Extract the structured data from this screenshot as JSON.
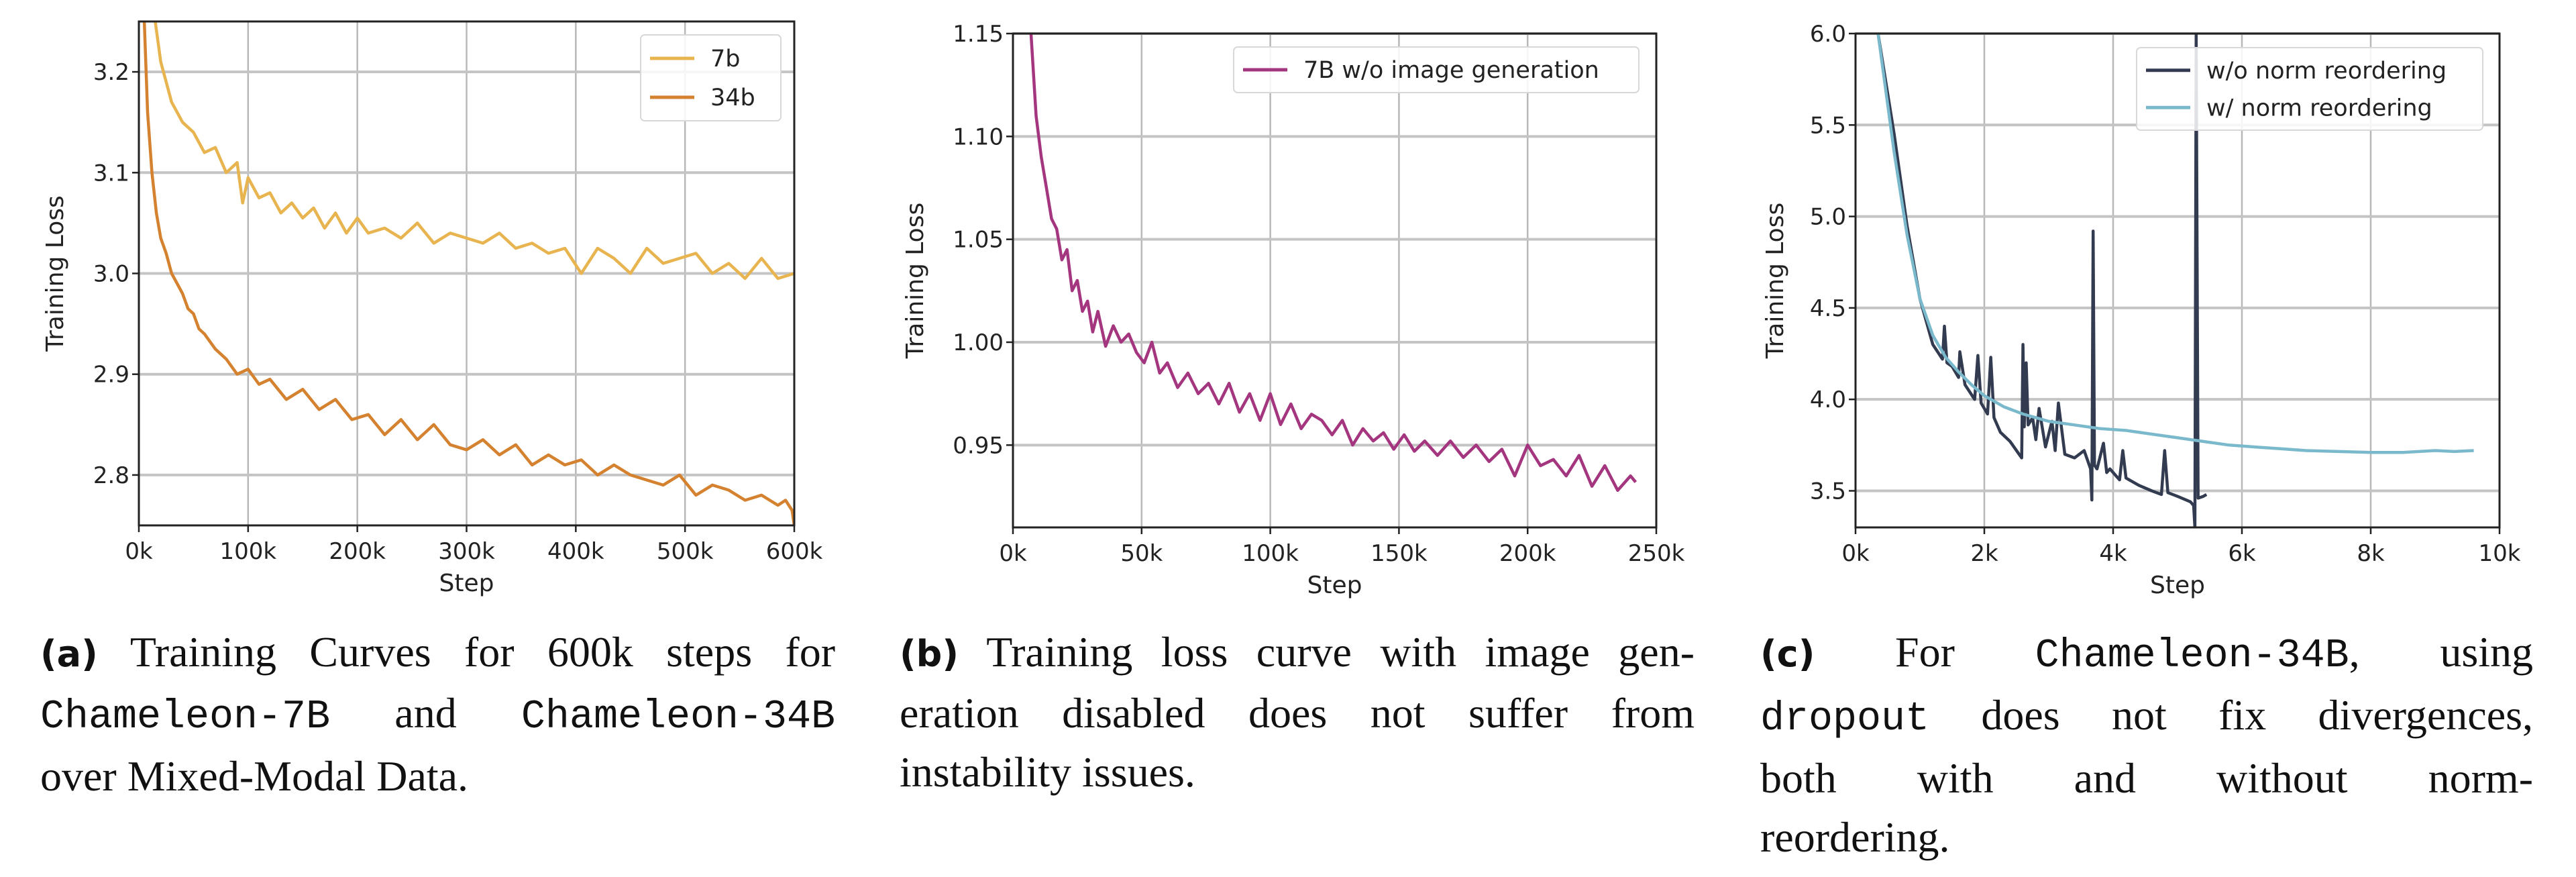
{
  "chart_data": [
    {
      "type": "line",
      "xlabel": "Step",
      "ylabel": "Training Loss",
      "xlim": [
        0,
        600000
      ],
      "ylim": [
        2.75,
        3.25
      ],
      "xticks": [
        0,
        100000,
        200000,
        300000,
        400000,
        500000,
        600000
      ],
      "xtick_labels": [
        "0k",
        "100k",
        "200k",
        "300k",
        "400k",
        "500k",
        "600k"
      ],
      "yticks": [
        2.8,
        2.9,
        3.0,
        3.1,
        3.2
      ],
      "ytick_labels": [
        "2.8",
        "2.9",
        "3.0",
        "3.1",
        "3.2"
      ],
      "grid": true,
      "legend": "top-right",
      "series": [
        {
          "name": "7b",
          "color": "#e8b44f",
          "x": [
            15000,
            20000,
            25000,
            30000,
            35000,
            40000,
            50000,
            60000,
            70000,
            80000,
            90000,
            95000,
            100000,
            110000,
            120000,
            130000,
            140000,
            150000,
            160000,
            170000,
            180000,
            190000,
            200000,
            210000,
            225000,
            240000,
            255000,
            270000,
            285000,
            300000,
            315000,
            330000,
            345000,
            360000,
            375000,
            390000,
            405000,
            420000,
            435000,
            450000,
            465000,
            480000,
            495000,
            510000,
            525000,
            540000,
            555000,
            570000,
            585000,
            600000
          ],
          "y": [
            3.25,
            3.21,
            3.19,
            3.17,
            3.16,
            3.15,
            3.14,
            3.12,
            3.125,
            3.1,
            3.11,
            3.07,
            3.095,
            3.075,
            3.08,
            3.06,
            3.07,
            3.055,
            3.065,
            3.045,
            3.06,
            3.04,
            3.055,
            3.04,
            3.045,
            3.035,
            3.05,
            3.03,
            3.04,
            3.035,
            3.03,
            3.04,
            3.025,
            3.03,
            3.02,
            3.025,
            3.0,
            3.025,
            3.015,
            3.0,
            3.025,
            3.01,
            3.015,
            3.02,
            3.0,
            3.01,
            2.995,
            3.015,
            2.995,
            3.0
          ]
        },
        {
          "name": "34b",
          "color": "#d4822f",
          "x": [
            5000,
            8000,
            12000,
            16000,
            20000,
            25000,
            30000,
            35000,
            40000,
            45000,
            50000,
            55000,
            60000,
            70000,
            80000,
            90000,
            100000,
            110000,
            120000,
            135000,
            150000,
            165000,
            180000,
            195000,
            210000,
            225000,
            240000,
            255000,
            270000,
            285000,
            300000,
            315000,
            330000,
            345000,
            360000,
            375000,
            390000,
            405000,
            420000,
            435000,
            450000,
            465000,
            480000,
            495000,
            510000,
            525000,
            540000,
            555000,
            570000,
            585000,
            592000,
            598000,
            600000
          ],
          "y": [
            3.25,
            3.16,
            3.1,
            3.06,
            3.035,
            3.02,
            3.0,
            2.99,
            2.98,
            2.965,
            2.96,
            2.945,
            2.94,
            2.925,
            2.915,
            2.9,
            2.905,
            2.89,
            2.895,
            2.875,
            2.885,
            2.865,
            2.875,
            2.855,
            2.86,
            2.84,
            2.855,
            2.835,
            2.85,
            2.83,
            2.825,
            2.835,
            2.82,
            2.83,
            2.81,
            2.82,
            2.81,
            2.815,
            2.8,
            2.81,
            2.8,
            2.795,
            2.79,
            2.8,
            2.78,
            2.79,
            2.785,
            2.775,
            2.78,
            2.77,
            2.775,
            2.765,
            2.75
          ]
        }
      ]
    },
    {
      "type": "line",
      "xlabel": "Step",
      "ylabel": "Training Loss",
      "xlim": [
        0,
        250000
      ],
      "ylim": [
        0.91,
        1.15
      ],
      "xticks": [
        0,
        50000,
        100000,
        150000,
        200000,
        250000
      ],
      "xtick_labels": [
        "0k",
        "50k",
        "100k",
        "150k",
        "200k",
        "250k"
      ],
      "yticks": [
        0.95,
        1.0,
        1.05,
        1.1,
        1.15
      ],
      "ytick_labels": [
        "0.95",
        "1.00",
        "1.05",
        "1.10",
        "1.15"
      ],
      "grid": true,
      "legend": "top-right",
      "series": [
        {
          "name": "7B w/o image generation",
          "color": "#a4357f",
          "x": [
            7000,
            9000,
            11000,
            13000,
            15000,
            17000,
            19000,
            21000,
            23000,
            25000,
            27000,
            29000,
            31000,
            33000,
            36000,
            39000,
            42000,
            45000,
            48000,
            51000,
            54000,
            57000,
            60000,
            64000,
            68000,
            72000,
            76000,
            80000,
            84000,
            88000,
            92000,
            96000,
            100000,
            104000,
            108000,
            112000,
            116000,
            120000,
            124000,
            128000,
            132000,
            136000,
            140000,
            144000,
            148000,
            152000,
            156000,
            160000,
            165000,
            170000,
            175000,
            180000,
            185000,
            190000,
            195000,
            200000,
            205000,
            210000,
            215000,
            220000,
            225000,
            230000,
            235000,
            240000,
            242000
          ],
          "y": [
            1.15,
            1.11,
            1.09,
            1.075,
            1.06,
            1.055,
            1.04,
            1.045,
            1.025,
            1.03,
            1.015,
            1.02,
            1.005,
            1.015,
            0.998,
            1.008,
            1.0,
            1.004,
            0.995,
            0.99,
            1.0,
            0.985,
            0.99,
            0.978,
            0.985,
            0.975,
            0.98,
            0.97,
            0.98,
            0.966,
            0.975,
            0.962,
            0.975,
            0.96,
            0.97,
            0.958,
            0.965,
            0.962,
            0.955,
            0.962,
            0.95,
            0.958,
            0.952,
            0.956,
            0.948,
            0.955,
            0.947,
            0.952,
            0.945,
            0.952,
            0.944,
            0.95,
            0.942,
            0.948,
            0.935,
            0.95,
            0.94,
            0.943,
            0.935,
            0.945,
            0.93,
            0.94,
            0.928,
            0.935,
            0.932
          ]
        }
      ]
    },
    {
      "type": "line",
      "xlabel": "Step",
      "ylabel": "Training Loss",
      "xlim": [
        0,
        10000
      ],
      "ylim": [
        3.3,
        6.0
      ],
      "xticks": [
        0,
        2000,
        4000,
        6000,
        8000,
        10000
      ],
      "xtick_labels": [
        "0k",
        "2k",
        "4k",
        "6k",
        "8k",
        "10k"
      ],
      "yticks": [
        3.5,
        4.0,
        4.5,
        5.0,
        5.5,
        6.0
      ],
      "ytick_labels": [
        "3.5",
        "4.0",
        "4.5",
        "5.0",
        "5.5",
        "6.0"
      ],
      "grid": true,
      "legend": "top-right",
      "series": [
        {
          "name": "w/o norm reordering",
          "color": "#323b50",
          "x": [
            350,
            600,
            800,
            1000,
            1200,
            1350,
            1380,
            1420,
            1500,
            1600,
            1620,
            1700,
            1850,
            1900,
            1950,
            2050,
            2100,
            2150,
            2250,
            2400,
            2580,
            2600,
            2620,
            2650,
            2680,
            2750,
            2800,
            2850,
            2950,
            3050,
            3100,
            3150,
            3250,
            3400,
            3550,
            3650,
            3670,
            3690,
            3710,
            3750,
            3850,
            3900,
            3950,
            4100,
            4150,
            4200,
            4400,
            4600,
            4750,
            4800,
            4850,
            5000,
            5200,
            5250,
            5270,
            5290,
            5320,
            5400,
            5450
          ],
          "y": [
            6.0,
            5.45,
            4.95,
            4.55,
            4.3,
            4.22,
            4.4,
            4.2,
            4.18,
            4.12,
            4.26,
            4.08,
            4.0,
            4.24,
            3.98,
            3.92,
            4.23,
            3.9,
            3.82,
            3.77,
            3.68,
            4.3,
            3.85,
            4.2,
            3.86,
            3.9,
            3.78,
            3.95,
            3.74,
            3.88,
            3.72,
            3.98,
            3.7,
            3.68,
            3.72,
            3.62,
            3.45,
            4.92,
            3.64,
            3.62,
            3.76,
            3.6,
            3.62,
            3.56,
            3.72,
            3.57,
            3.53,
            3.5,
            3.48,
            3.72,
            3.49,
            3.47,
            3.44,
            3.42,
            3.3,
            6.0,
            3.46,
            3.47,
            3.48
          ]
        },
        {
          "name": "w/ norm reordering",
          "color": "#7ab9cc",
          "x": [
            350,
            600,
            800,
            1000,
            1200,
            1400,
            1600,
            1800,
            2000,
            2300,
            2600,
            3000,
            3400,
            3800,
            4200,
            4600,
            5000,
            5400,
            5800,
            6200,
            6600,
            7000,
            7500,
            8000,
            8500,
            9000,
            9300,
            9600
          ],
          "y": [
            6.0,
            5.35,
            4.9,
            4.55,
            4.35,
            4.23,
            4.15,
            4.08,
            4.02,
            3.96,
            3.92,
            3.88,
            3.86,
            3.84,
            3.83,
            3.81,
            3.79,
            3.77,
            3.75,
            3.74,
            3.73,
            3.72,
            3.715,
            3.71,
            3.71,
            3.72,
            3.715,
            3.72
          ]
        }
      ]
    }
  ],
  "captions": [
    {
      "lines": [
        [
          {
            "t": "(a)",
            "s": "lbl"
          },
          {
            "t": " Training Curves for 600k steps for",
            "s": "text"
          }
        ],
        [
          {
            "t": "Chameleon-7B",
            "s": "mono"
          },
          {
            "t": " and ",
            "s": "text"
          },
          {
            "t": "Chameleon-34B",
            "s": "mono"
          }
        ],
        [
          {
            "t": "over Mixed-Modal Data.",
            "s": "text"
          }
        ]
      ]
    },
    {
      "lines": [
        [
          {
            "t": "(b)",
            "s": "lbl"
          },
          {
            "t": " Training loss curve with image gen-",
            "s": "text"
          }
        ],
        [
          {
            "t": "eration disabled does not suffer from",
            "s": "text"
          }
        ],
        [
          {
            "t": "instability issues.",
            "s": "text"
          }
        ]
      ]
    },
    {
      "lines": [
        [
          {
            "t": "(c)",
            "s": "lbl"
          },
          {
            "t": " For ",
            "s": "text"
          },
          {
            "t": "Chameleon-34B",
            "s": "mono"
          },
          {
            "t": ", using",
            "s": "text"
          }
        ],
        [
          {
            "t": "dropout",
            "s": "mono"
          },
          {
            "t": " does not fix divergences,",
            "s": "text"
          }
        ],
        [
          {
            "t": "both with and without norm-",
            "s": "text"
          }
        ],
        [
          {
            "t": "reordering.",
            "s": "text"
          }
        ]
      ]
    }
  ]
}
